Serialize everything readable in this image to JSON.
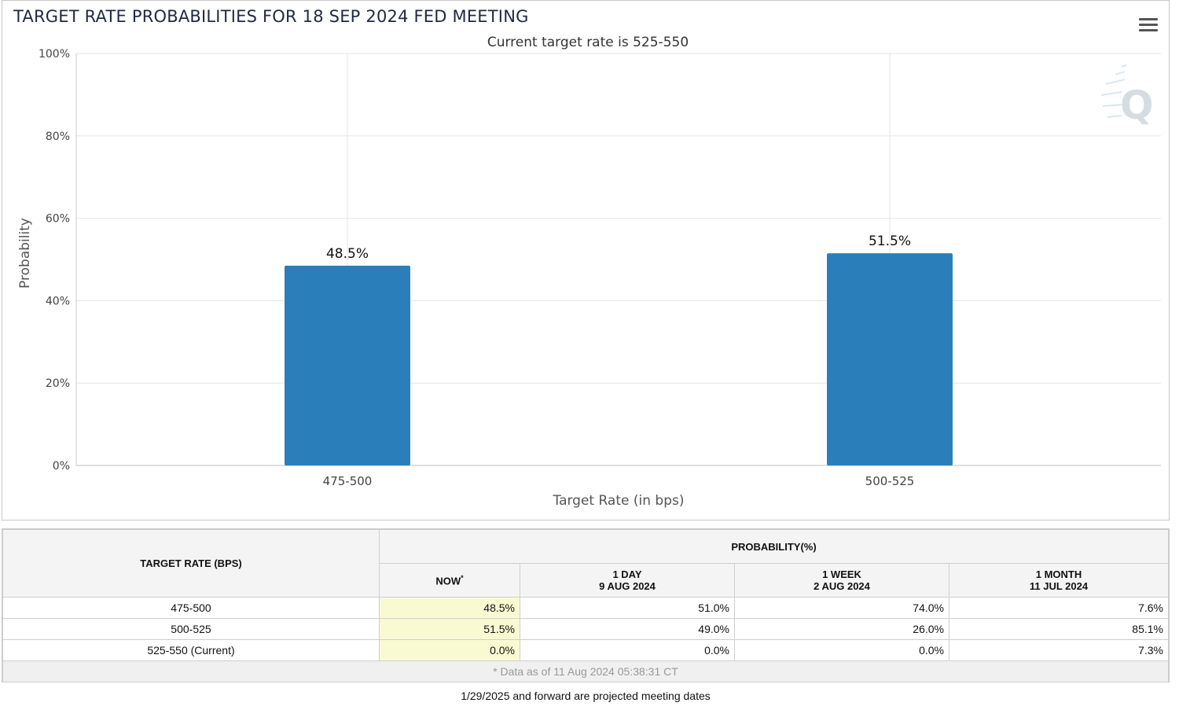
{
  "chart": {
    "title": "TARGET RATE PROBABILITIES FOR 18 SEP 2024 FED MEETING",
    "subtitle": "Current target rate is 525-550"
  },
  "chart_data": {
    "type": "bar",
    "categories": [
      "475-500",
      "500-525"
    ],
    "values": [
      48.5,
      51.5
    ],
    "data_labels": [
      "48.5%",
      "51.5%"
    ],
    "xlabel": "Target Rate (in bps)",
    "ylabel": "Probability",
    "ylim": [
      0,
      100
    ],
    "yticks": [
      0,
      20,
      40,
      60,
      80,
      100
    ],
    "ytick_labels": [
      "0%",
      "20%",
      "40%",
      "60%",
      "80%",
      "100%"
    ],
    "grid": true,
    "bar_color": "#2a7fbb"
  },
  "table": {
    "col_header_rate": "TARGET RATE (BPS)",
    "col_header_prob": "PROBABILITY(%)",
    "subheaders": [
      {
        "line1": "NOW",
        "sup": "*",
        "line2": ""
      },
      {
        "line1": "1 DAY",
        "line2": "9 AUG 2024"
      },
      {
        "line1": "1 WEEK",
        "line2": "2 AUG 2024"
      },
      {
        "line1": "1 MONTH",
        "line2": "11 JUL 2024"
      }
    ],
    "rows": [
      {
        "rate": "475-500",
        "now": "48.5%",
        "day": "51.0%",
        "week": "74.0%",
        "month": "7.6%"
      },
      {
        "rate": "500-525",
        "now": "51.5%",
        "day": "49.0%",
        "week": "26.0%",
        "month": "85.1%"
      },
      {
        "rate": "525-550 (Current)",
        "now": "0.0%",
        "day": "0.0%",
        "week": "0.0%",
        "month": "7.3%"
      }
    ],
    "footnote": "* Data as of 11 Aug 2024 05:38:31 CT"
  },
  "bottom_note": "1/29/2025 and forward are projected meeting dates",
  "icons": {
    "menu": "hamburger-menu-icon",
    "watermark": "q-logo-icon"
  }
}
